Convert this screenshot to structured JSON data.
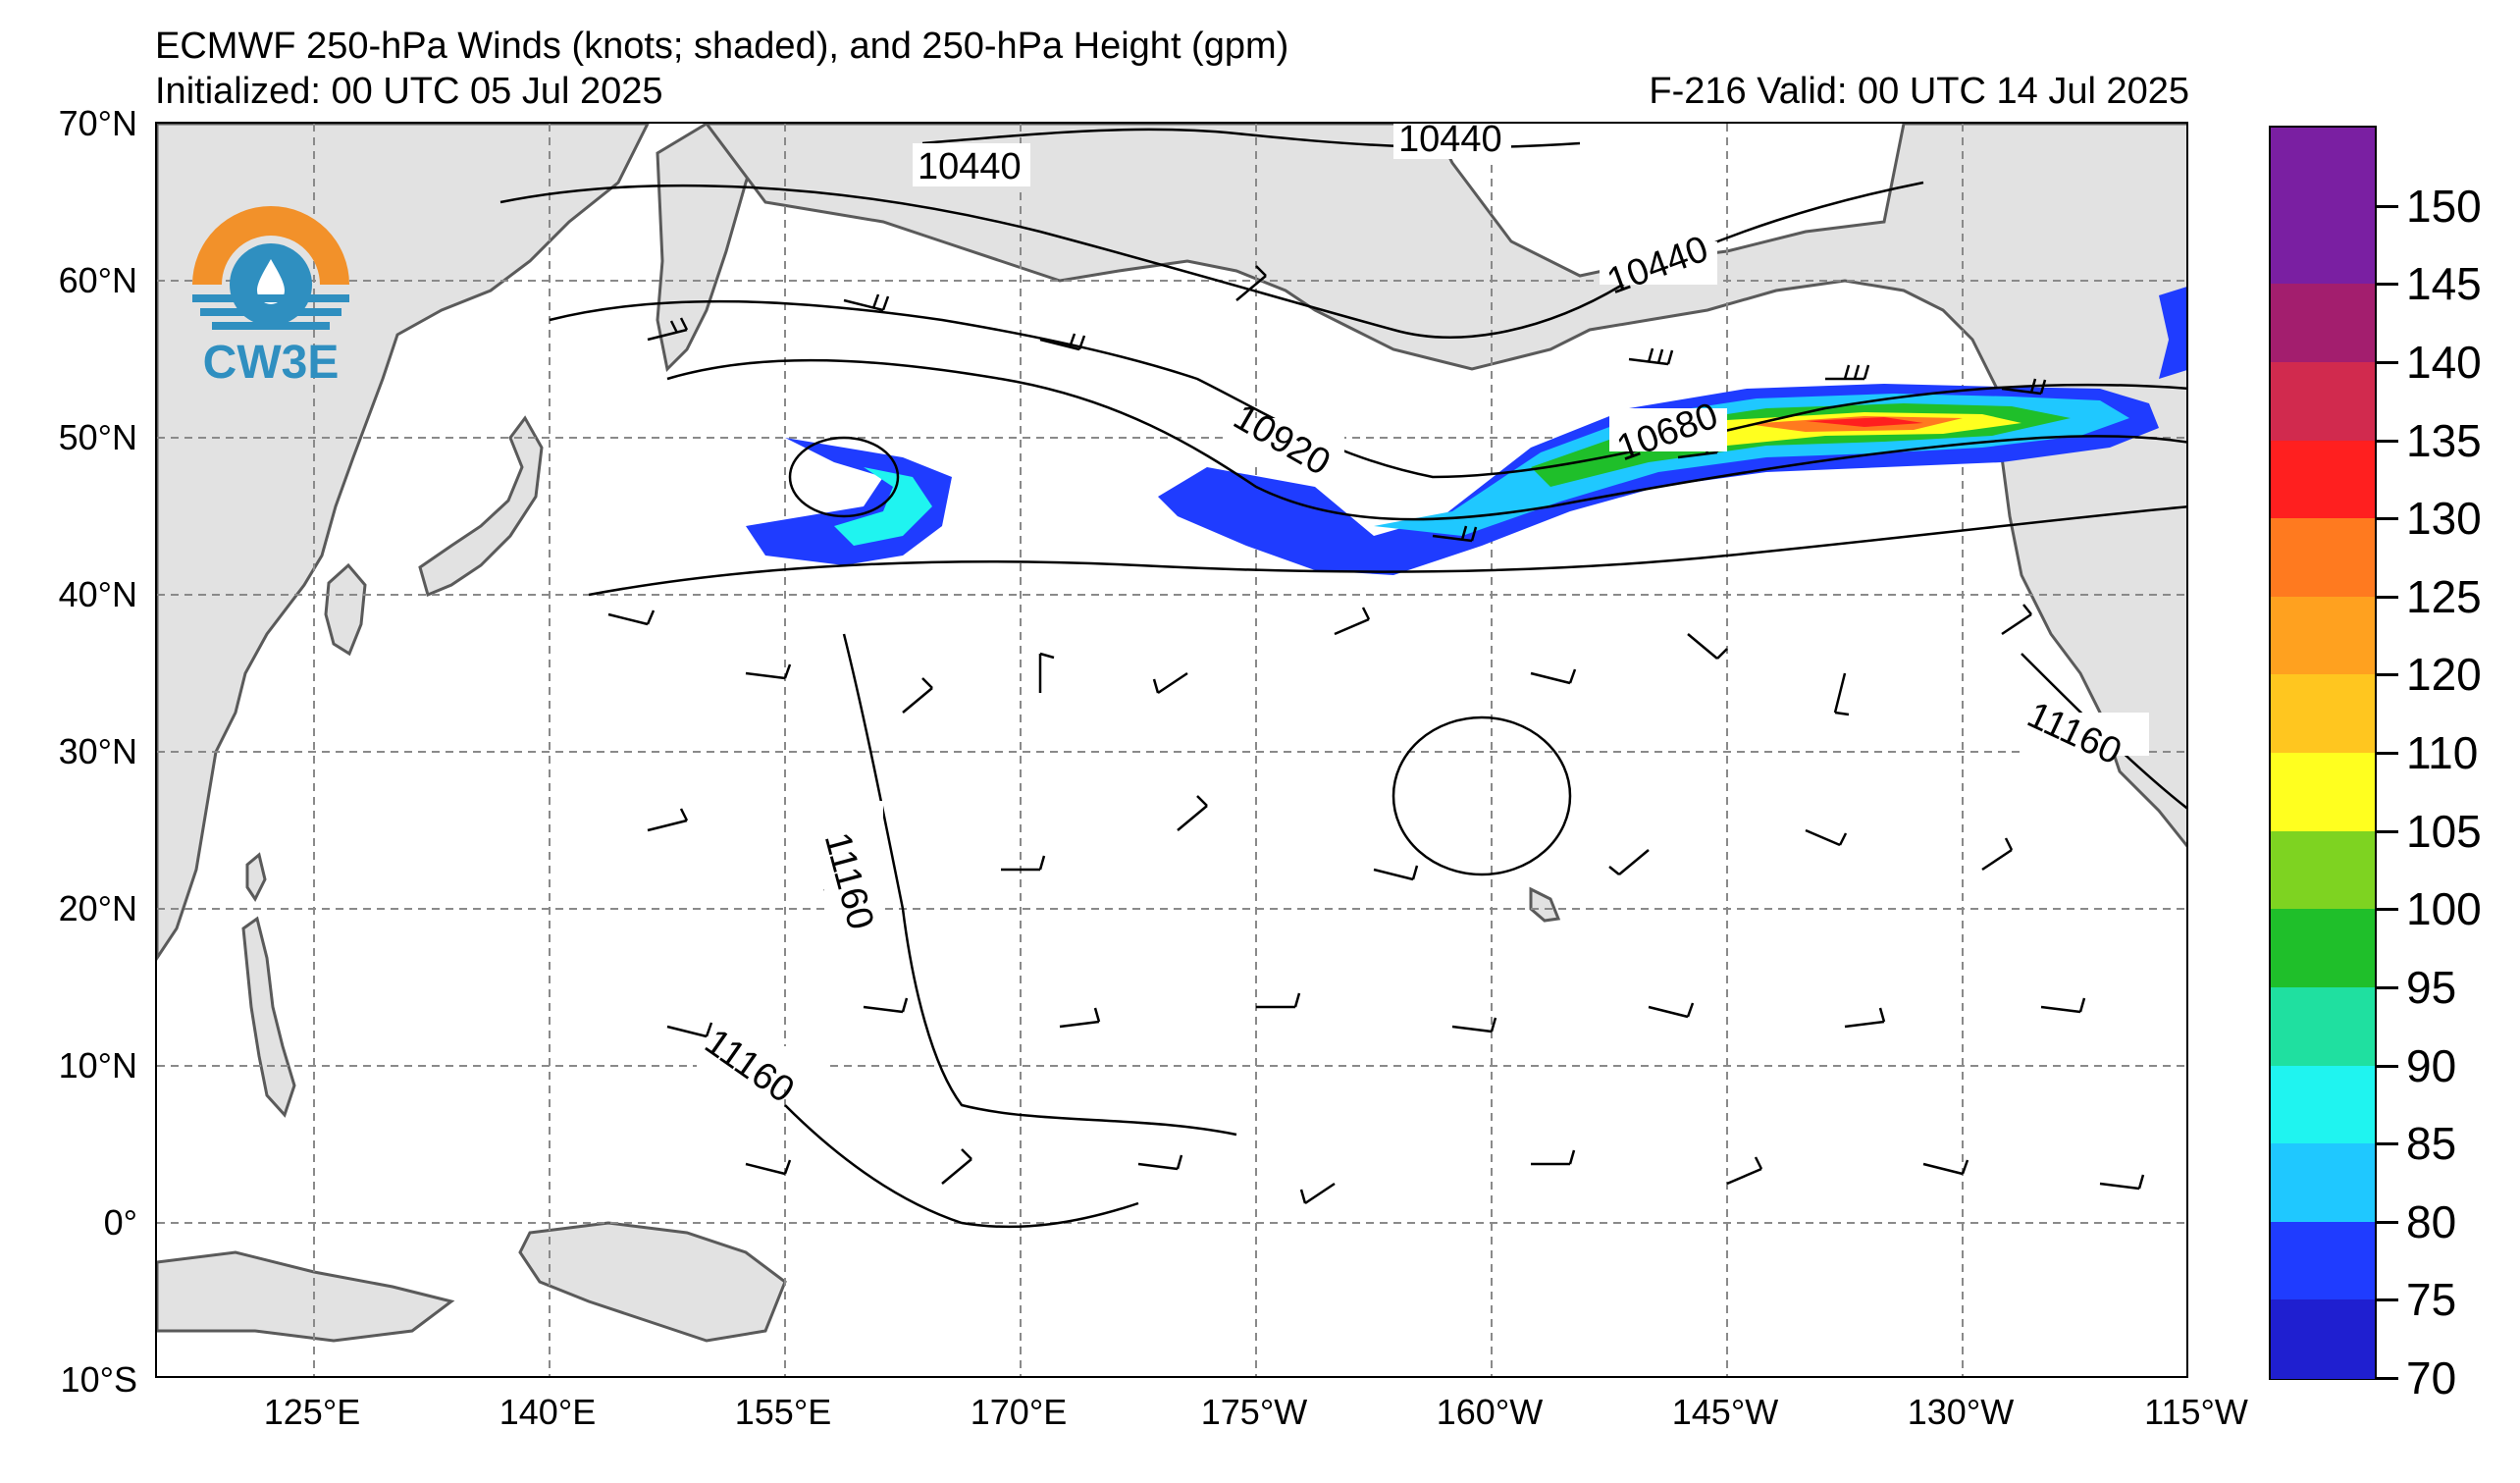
{
  "header": {
    "title": "ECMWF 250-hPa Winds (knots; shaded), and 250-hPa Height (gpm)",
    "initialized": "Initialized: 00 UTC 05 Jul 2025",
    "valid": "F-216  Valid: 00 UTC 14 Jul 2025"
  },
  "logo": {
    "text": "CW3E"
  },
  "axes": {
    "lat_labels": [
      "70°N",
      "60°N",
      "50°N",
      "40°N",
      "30°N",
      "20°N",
      "10°N",
      "0°",
      "10°S"
    ],
    "lon_labels": [
      "125°E",
      "140°E",
      "155°E",
      "170°E",
      "175°W",
      "160°W",
      "145°W",
      "130°W",
      "115°W"
    ]
  },
  "contour_labels": [
    "10440",
    "10440",
    "10440",
    "10920",
    "10680",
    "11160",
    "11160",
    "11160"
  ],
  "colorbar": {
    "labels": [
      "150",
      "145",
      "140",
      "135",
      "130",
      "125",
      "120",
      "110",
      "105",
      "100",
      "95",
      "90",
      "85",
      "80",
      "75",
      "70"
    ],
    "colors": [
      "#7a1fa2",
      "#a31e6e",
      "#d12a4e",
      "#ff1f1f",
      "#ff7a1f",
      "#ffa11f",
      "#ffc61f",
      "#ffff1f",
      "#7ed321",
      "#1fbf2a",
      "#1fe0a0",
      "#1ff4f0",
      "#1fc8ff",
      "#1f3cff",
      "#1f1fd0"
    ]
  },
  "colors": {
    "land": "#e2e2e2",
    "coast": "#5a5a5a",
    "grid": "#8a8a8a",
    "logo_orange": "#f2912a",
    "logo_blue": "#2f8fc0"
  }
}
